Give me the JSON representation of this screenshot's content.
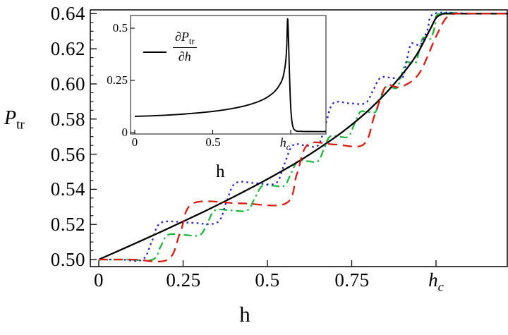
{
  "chart_data": {
    "type": "line",
    "title": "",
    "xlabel": "h",
    "ylabel_parts": {
      "base": "P",
      "sub": "tr"
    },
    "annotation_h": "h",
    "xlim": [
      0,
      1.213
    ],
    "ylim": [
      0.4959,
      0.6462
    ],
    "xtick_values": [
      0,
      0.25,
      0.5,
      0.75
    ],
    "xtick_labels": [
      "0",
      "0.25",
      "0.5",
      "0.75"
    ],
    "hc_tick_value": 1.0,
    "hc_label": {
      "base": "h",
      "sub": "c"
    },
    "ytick_values": [
      0.5,
      0.52,
      0.54,
      0.56,
      0.58,
      0.6,
      0.62,
      0.64
    ],
    "ytick_labels": [
      "0.50",
      "0.52",
      "0.54",
      "0.56",
      "0.58",
      "0.60",
      "0.62",
      "0.64"
    ],
    "ytick_minor_step": 0.005,
    "grid": false,
    "series": [
      {
        "name": "transition-probability-smooth",
        "color": "#000000",
        "style": "solid",
        "points": [
          [
            0,
            0.5
          ],
          [
            0.1,
            0.5085
          ],
          [
            0.2,
            0.5172
          ],
          [
            0.3,
            0.5262
          ],
          [
            0.4,
            0.5357
          ],
          [
            0.5,
            0.5458
          ],
          [
            0.6,
            0.5568
          ],
          [
            0.7,
            0.5695
          ],
          [
            0.75,
            0.5768
          ],
          [
            0.8,
            0.585
          ],
          [
            0.85,
            0.5945
          ],
          [
            0.9,
            0.6055
          ],
          [
            0.93,
            0.613
          ],
          [
            0.95,
            0.619
          ],
          [
            0.97,
            0.6265
          ],
          [
            0.985,
            0.632
          ],
          [
            1.0,
            0.6375
          ],
          [
            1.015,
            0.6395
          ],
          [
            1.03,
            0.64
          ],
          [
            1.12,
            0.64
          ],
          [
            1.213,
            0.64
          ]
        ]
      },
      {
        "name": "staircase-large-steps",
        "color": "#dd1c10",
        "style": "dashed",
        "points": [
          [
            0,
            0.5
          ],
          [
            0.1,
            0.5
          ],
          [
            0.205,
            0.5
          ],
          [
            0.2425,
            0.516
          ],
          [
            0.28,
            0.532
          ],
          [
            0.42,
            0.532
          ],
          [
            0.555,
            0.532
          ],
          [
            0.5875,
            0.5487
          ],
          [
            0.62,
            0.5655
          ],
          [
            0.7,
            0.5655
          ],
          [
            0.785,
            0.5655
          ],
          [
            0.8175,
            0.582
          ],
          [
            0.85,
            0.5985
          ],
          [
            0.875,
            0.5985
          ],
          [
            0.9,
            0.5985
          ],
          [
            0.95,
            0.606
          ],
          [
            1.0,
            0.627
          ],
          [
            1.03,
            0.6375
          ],
          [
            1.06,
            0.64
          ],
          [
            1.13,
            0.64
          ],
          [
            1.213,
            0.64
          ]
        ]
      },
      {
        "name": "staircase-medium-steps",
        "color": "#2323cc",
        "style": "dotted",
        "points": [
          [
            0,
            0.5
          ],
          [
            0.065,
            0.5
          ],
          [
            0.13,
            0.5
          ],
          [
            0.1575,
            0.5105
          ],
          [
            0.185,
            0.521
          ],
          [
            0.2675,
            0.521
          ],
          [
            0.35,
            0.521
          ],
          [
            0.3775,
            0.5322
          ],
          [
            0.405,
            0.5435
          ],
          [
            0.465,
            0.5435
          ],
          [
            0.525,
            0.5435
          ],
          [
            0.55,
            0.5542
          ],
          [
            0.575,
            0.565
          ],
          [
            0.6125,
            0.565
          ],
          [
            0.65,
            0.565
          ],
          [
            0.6725,
            0.577
          ],
          [
            0.695,
            0.589
          ],
          [
            0.7425,
            0.589
          ],
          [
            0.79,
            0.589
          ],
          [
            0.8125,
            0.596
          ],
          [
            0.835,
            0.6035
          ],
          [
            0.8675,
            0.6035
          ],
          [
            0.9,
            0.6035
          ],
          [
            0.9125,
            0.613
          ],
          [
            0.925,
            0.6225
          ],
          [
            0.94,
            0.6225
          ],
          [
            0.955,
            0.6225
          ],
          [
            0.975,
            0.631
          ],
          [
            0.995,
            0.64
          ],
          [
            1.1,
            0.64
          ],
          [
            1.213,
            0.64
          ]
        ]
      },
      {
        "name": "staircase-small-steps",
        "color": "#1db93c",
        "style": "dashdot",
        "points": [
          [
            0,
            0.5
          ],
          [
            0.08,
            0.5
          ],
          [
            0.16,
            0.5
          ],
          [
            0.1825,
            0.507
          ],
          [
            0.205,
            0.514
          ],
          [
            0.2525,
            0.514
          ],
          [
            0.3,
            0.514
          ],
          [
            0.3225,
            0.521
          ],
          [
            0.345,
            0.528
          ],
          [
            0.3925,
            0.528
          ],
          [
            0.44,
            0.528
          ],
          [
            0.4625,
            0.535
          ],
          [
            0.485,
            0.542
          ],
          [
            0.5175,
            0.542
          ],
          [
            0.55,
            0.542
          ],
          [
            0.57,
            0.549
          ],
          [
            0.59,
            0.556
          ],
          [
            0.62,
            0.556
          ],
          [
            0.65,
            0.556
          ],
          [
            0.6675,
            0.563
          ],
          [
            0.685,
            0.57
          ],
          [
            0.7125,
            0.57
          ],
          [
            0.74,
            0.57
          ],
          [
            0.7575,
            0.577
          ],
          [
            0.775,
            0.584
          ],
          [
            0.7975,
            0.584
          ],
          [
            0.82,
            0.584
          ],
          [
            0.835,
            0.591
          ],
          [
            0.85,
            0.598
          ],
          [
            0.8675,
            0.598
          ],
          [
            0.885,
            0.598
          ],
          [
            0.8975,
            0.605
          ],
          [
            0.91,
            0.612
          ],
          [
            0.925,
            0.612
          ],
          [
            0.94,
            0.612
          ],
          [
            0.95,
            0.619
          ],
          [
            0.96,
            0.626
          ],
          [
            0.9725,
            0.626
          ],
          [
            0.985,
            0.626
          ],
          [
            0.9975,
            0.633
          ],
          [
            1.01,
            0.64
          ],
          [
            1.11,
            0.64
          ],
          [
            1.213,
            0.64
          ]
        ]
      }
    ],
    "inset": {
      "legend": {
        "d": "∂",
        "num_base": "P",
        "num_sub": "tr",
        "den_base": "h"
      },
      "xlim": [
        0,
        1.226
      ],
      "ylim": [
        -0.01,
        0.561
      ],
      "xtick_values": [
        0,
        0.5
      ],
      "xtick_labels": [
        "0",
        "0.5"
      ],
      "hc_tick_value": 1.0,
      "hc_label": {
        "base": "h",
        "sub": "c"
      },
      "ytick_values": [
        0,
        0.25,
        0.5
      ],
      "ytick_labels": [
        "0",
        "0.25",
        "0.5"
      ],
      "series": [
        {
          "name": "derivative-dPtr-dh",
          "color": "#000000",
          "style": "solid",
          "points": [
            [
              0,
              0.078
            ],
            [
              0.1,
              0.08
            ],
            [
              0.2,
              0.0835
            ],
            [
              0.3,
              0.088
            ],
            [
              0.4,
              0.094
            ],
            [
              0.5,
              0.1015
            ],
            [
              0.6,
              0.112
            ],
            [
              0.7,
              0.127
            ],
            [
              0.78,
              0.145
            ],
            [
              0.84,
              0.165
            ],
            [
              0.89,
              0.192
            ],
            [
              0.92,
              0.218
            ],
            [
              0.945,
              0.252
            ],
            [
              0.958,
              0.29
            ],
            [
              0.968,
              0.34
            ],
            [
              0.975,
              0.42
            ],
            [
              0.98,
              0.545
            ],
            [
              0.986,
              0.45
            ],
            [
              0.992,
              0.29
            ],
            [
              1.0,
              0.125
            ],
            [
              1.012,
              0.035
            ],
            [
              1.03,
              0.01
            ],
            [
              1.06,
              0.006
            ],
            [
              1.12,
              0.005
            ],
            [
              1.226,
              0.005
            ]
          ]
        }
      ]
    }
  }
}
